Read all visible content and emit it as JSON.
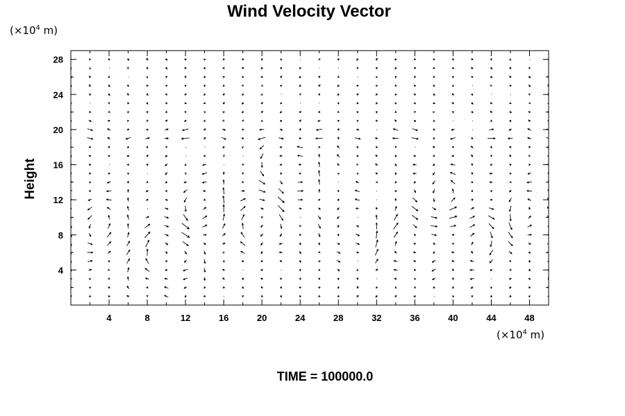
{
  "chart_data": {
    "type": "vector-field",
    "title": "Wind Velocity Vector",
    "ylabel": "Height",
    "xlabel": "",
    "x_unit": "(×10",
    "x_unit_exp": "4",
    "x_unit_tail": " m)",
    "y_unit": "(×10",
    "y_unit_exp": "4",
    "y_unit_tail": " m)",
    "footer": "TIME = 100000.0",
    "xlim": [
      0,
      50
    ],
    "ylim": [
      0,
      29
    ],
    "x_ticks": [
      4,
      8,
      12,
      16,
      20,
      24,
      28,
      32,
      36,
      40,
      44,
      48
    ],
    "y_ticks": [
      4,
      8,
      12,
      16,
      20,
      24,
      28
    ],
    "grid": false,
    "vector_rows": {
      "x_start": 0.0,
      "x_step": 2.0,
      "x_count": 26,
      "y_levels": [
        1,
        2,
        3,
        4,
        5,
        6,
        7,
        8,
        9,
        10,
        11,
        12,
        13,
        14,
        15,
        16,
        17,
        18,
        19,
        20,
        21,
        22,
        23,
        24,
        25,
        26,
        27,
        28
      ]
    },
    "vortex_centers": [
      {
        "x": 3,
        "y": 9,
        "sense": 1
      },
      {
        "x": 10,
        "y": 6,
        "sense": -1
      },
      {
        "x": 14,
        "y": 11,
        "sense": 1
      },
      {
        "x": 19,
        "y": 10,
        "sense": -1
      },
      {
        "x": 23,
        "y": 15,
        "sense": 1
      },
      {
        "x": 31,
        "y": 9,
        "sense": 1
      },
      {
        "x": 35,
        "y": 8,
        "sense": -1
      },
      {
        "x": 39,
        "y": 12,
        "sense": 1
      },
      {
        "x": 43,
        "y": 8,
        "sense": -1
      },
      {
        "x": 47,
        "y": 10,
        "sense": 1
      }
    ]
  }
}
